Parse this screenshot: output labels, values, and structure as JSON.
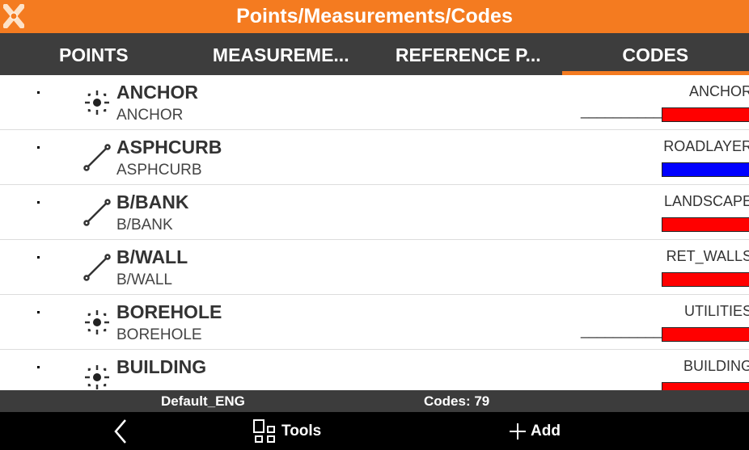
{
  "header": {
    "title": "Points/Measurements/Codes"
  },
  "tabs": [
    {
      "label": "POINTS"
    },
    {
      "label": "MEASUREME..."
    },
    {
      "label": "REFERENCE P..."
    },
    {
      "label": "CODES",
      "active": true
    }
  ],
  "codes": [
    {
      "name": "ANCHOR",
      "description": "ANCHOR",
      "layer": "ANCHOR",
      "icon": "point-target-icon",
      "line_style": "__________",
      "color": "#ff0000"
    },
    {
      "name": "ASPHCURB",
      "description": "ASPHCURB",
      "layer": "ROADLAYER",
      "icon": "line-icon",
      "line_style": "",
      "color": "#0000ff"
    },
    {
      "name": "B/BANK",
      "description": "B/BANK",
      "layer": "LANDSCAPE",
      "icon": "line-icon",
      "line_style": "",
      "color": "#ff0000"
    },
    {
      "name": "B/WALL",
      "description": "B/WALL",
      "layer": "RET_WALLS",
      "icon": "line-icon",
      "line_style": "",
      "color": "#ff0000"
    },
    {
      "name": "BOREHOLE",
      "description": "BOREHOLE",
      "layer": "UTILITIES",
      "icon": "point-target-icon",
      "line_style": "__________",
      "color": "#ff0000"
    },
    {
      "name": "BUILDING",
      "description": "",
      "layer": "BUILDING",
      "icon": "point-target-icon",
      "line_style": "",
      "color": "#ff0000"
    }
  ],
  "status": {
    "library": "Default_ENG",
    "count": "Codes: 79"
  },
  "nav": {
    "tools": "Tools",
    "add": "Add"
  },
  "colors": {
    "accent": "#f47b20",
    "tabbar": "#3d3d3d"
  }
}
